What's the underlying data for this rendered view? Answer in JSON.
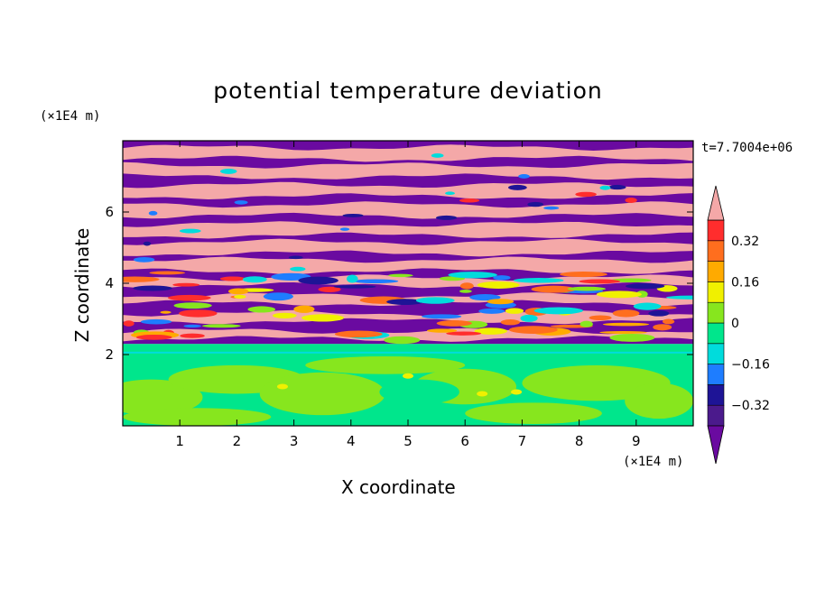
{
  "chart_data": {
    "type": "heatmap",
    "title": "potential temperature deviation",
    "xlabel": "X coordinate",
    "ylabel": "Z coordinate",
    "x_unit": "(×1E4 m)",
    "y_unit": "(×1E4 m)",
    "time_label": "t=7.7004e+06",
    "x_ticks": [
      "1",
      "2",
      "3",
      "4",
      "5",
      "6",
      "7",
      "8",
      "9"
    ],
    "x_tick_values": [
      1,
      2,
      3,
      4,
      5,
      6,
      7,
      8,
      9
    ],
    "y_ticks": [
      "2",
      "4",
      "6"
    ],
    "y_tick_values": [
      2,
      4,
      6
    ],
    "xlim": [
      0,
      10
    ],
    "ylim": [
      0,
      8
    ],
    "colorbar": {
      "levels": [
        -0.4,
        -0.32,
        -0.24,
        -0.16,
        -0.08,
        0,
        0.08,
        0.16,
        0.24,
        0.32,
        0.4
      ],
      "labels": [
        "0.32",
        "0.16",
        "0",
        "−0.16",
        "−0.32"
      ],
      "label_values": [
        0.32,
        0.16,
        0,
        -0.16,
        -0.32
      ],
      "colors": [
        "#4b1a8c",
        "#1e1496",
        "#1e7dff",
        "#00dcdc",
        "#00e68c",
        "#87e61e",
        "#f0f000",
        "#ffaa00",
        "#ff6e1e",
        "#ff2d2d"
      ],
      "over_color": "#f4a8a8",
      "under_color": "#6a0aa0"
    },
    "field_description_layers": [
      {
        "z_range": [
          0,
          2.0
        ],
        "dominant": "#00e68c",
        "mixed": [
          "#87e61e",
          "#f0f000"
        ]
      },
      {
        "z_range": [
          2.0,
          2.3
        ],
        "dominant": "#00e68c",
        "mixed": [
          "#00dcdc"
        ]
      },
      {
        "z_range": [
          2.3,
          4.3
        ],
        "dominant": "alternating",
        "mixed": [
          "#6a0aa0",
          "#f4a8a8",
          "#ff2d2d",
          "#ffaa00",
          "#1e1496"
        ]
      },
      {
        "z_range": [
          4.3,
          8.0
        ],
        "dominant": "alternating",
        "mixed": [
          "#6a0aa0",
          "#f4a8a8"
        ]
      }
    ]
  }
}
